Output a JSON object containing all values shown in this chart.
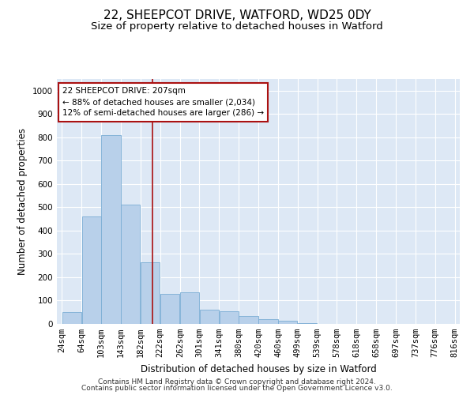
{
  "title": "22, SHEEPCOT DRIVE, WATFORD, WD25 0DY",
  "subtitle": "Size of property relative to detached houses in Watford",
  "xlabel": "Distribution of detached houses by size in Watford",
  "ylabel": "Number of detached properties",
  "footer_line1": "Contains HM Land Registry data © Crown copyright and database right 2024.",
  "footer_line2": "Contains public sector information licensed under the Open Government Licence v3.0.",
  "annotation_line1": "22 SHEEPCOT DRIVE: 207sqm",
  "annotation_line2": "← 88% of detached houses are smaller (2,034)",
  "annotation_line3": "12% of semi-detached houses are larger (286) →",
  "bar_color": "#b8d0ea",
  "bar_edge_color": "#7aadd4",
  "vline_color": "#aa1111",
  "vline_value": 207,
  "annotation_box_color": "#aa1111",
  "background_color": "#dde8f5",
  "bins": [
    24,
    64,
    103,
    143,
    182,
    222,
    262,
    301,
    341,
    380,
    420,
    460,
    499,
    539,
    578,
    618,
    658,
    697,
    737,
    776,
    816
  ],
  "counts": [
    50,
    460,
    810,
    510,
    265,
    130,
    135,
    60,
    55,
    35,
    20,
    15,
    5,
    0,
    0,
    0,
    0,
    0,
    0,
    0
  ],
  "ylim": [
    0,
    1050
  ],
  "yticks": [
    0,
    100,
    200,
    300,
    400,
    500,
    600,
    700,
    800,
    900,
    1000
  ],
  "title_fontsize": 11,
  "subtitle_fontsize": 9.5,
  "tick_fontsize": 7.5,
  "label_fontsize": 8.5,
  "footer_fontsize": 6.5
}
